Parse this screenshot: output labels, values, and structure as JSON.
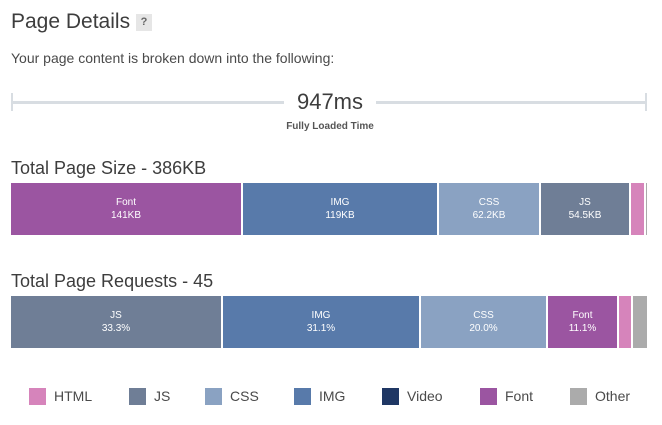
{
  "header": {
    "title": "Page Details",
    "help": "?"
  },
  "subtitle": "Your page content is broken down into the following:",
  "timing": {
    "value": "947ms",
    "label": "Fully Loaded Time"
  },
  "colors": {
    "HTML": "#d684bb",
    "JS": "#6f7e96",
    "CSS": "#8aa2c2",
    "IMG": "#587aaa",
    "Video": "#1f3764",
    "Font": "#9b55a1",
    "Other": "#ababab"
  },
  "size_section": {
    "title": "Total Page Size - 386KB",
    "segments": [
      {
        "type": "Font",
        "label": "Font",
        "value": "141KB",
        "share": 0.365
      },
      {
        "type": "IMG",
        "label": "IMG",
        "value": "119KB",
        "share": 0.308
      },
      {
        "type": "CSS",
        "label": "CSS",
        "value": "62.2KB",
        "share": 0.161
      },
      {
        "type": "JS",
        "label": "JS",
        "value": "54.5KB",
        "share": 0.141
      },
      {
        "type": "HTML",
        "label": "",
        "value": "",
        "share": 0.024
      },
      {
        "type": "Other",
        "label": "",
        "value": "",
        "share": 0.001
      }
    ]
  },
  "requests_section": {
    "title": "Total Page Requests - 45",
    "segments": [
      {
        "type": "JS",
        "label": "JS",
        "value": "33.3%",
        "share": 0.333
      },
      {
        "type": "IMG",
        "label": "IMG",
        "value": "31.1%",
        "share": 0.311
      },
      {
        "type": "CSS",
        "label": "CSS",
        "value": "20.0%",
        "share": 0.2
      },
      {
        "type": "Font",
        "label": "Font",
        "value": "11.1%",
        "share": 0.111
      },
      {
        "type": "HTML",
        "label": "",
        "value": "",
        "share": 0.022
      },
      {
        "type": "Other",
        "label": "",
        "value": "",
        "share": 0.023
      }
    ]
  },
  "legend": [
    "HTML",
    "JS",
    "CSS",
    "IMG",
    "Video",
    "Font",
    "Other"
  ]
}
